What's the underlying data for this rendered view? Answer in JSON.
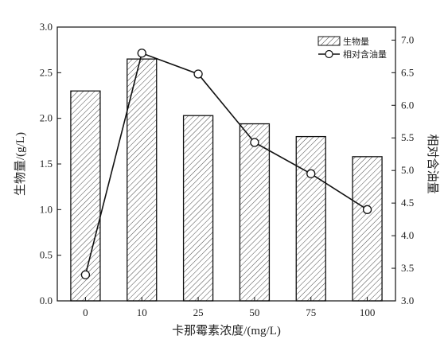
{
  "chart_data": {
    "type": "bar",
    "xlabel": "卡那霉素浓度/(mg/L)",
    "categories": [
      "0",
      "10",
      "25",
      "50",
      "75",
      "100"
    ],
    "left_axis": {
      "label": "生物量/(g/L)",
      "ylim": [
        0,
        3.0
      ],
      "ticks": [
        "0.0",
        "0.5",
        "1.0",
        "1.5",
        "2.0",
        "2.5",
        "3.0"
      ]
    },
    "right_axis": {
      "label": "相对含油量",
      "ylim": [
        3.0,
        7.2
      ],
      "ticks": [
        "3.0",
        "3.5",
        "4.0",
        "4.5",
        "5.0",
        "5.5",
        "6.0",
        "6.5",
        "7.0"
      ]
    },
    "series": [
      {
        "name": "生物量",
        "kind": "bar",
        "axis": "left",
        "values": [
          2.3,
          2.65,
          2.03,
          1.94,
          1.8,
          1.58
        ]
      },
      {
        "name": "相对含油量",
        "kind": "line",
        "axis": "right",
        "values": [
          3.4,
          6.8,
          6.48,
          5.43,
          4.95,
          4.4
        ]
      }
    ],
    "legend": {
      "position": "top-right"
    },
    "grid": false
  }
}
